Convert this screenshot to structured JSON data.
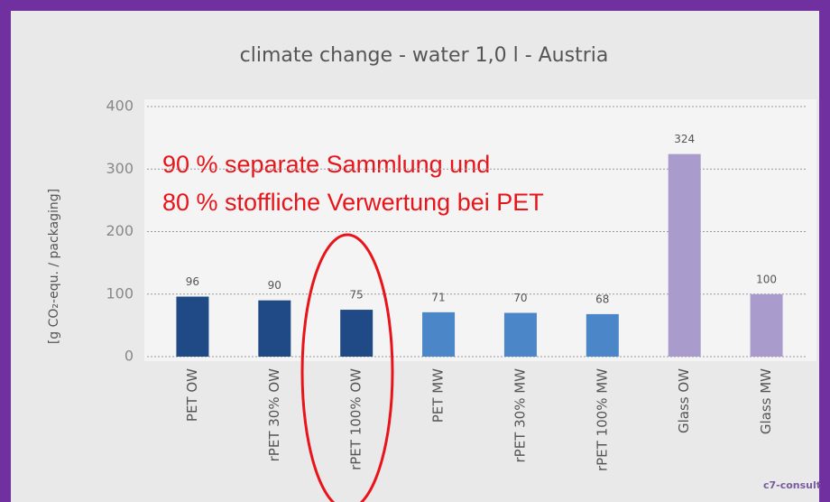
{
  "chart_data": {
    "type": "bar",
    "title": "climate change - water 1,0 l - Austria",
    "y_label": "[g CO₂-equ. / packaging]",
    "categories": [
      "PET OW",
      "rPET 30% OW",
      "rPET 100% OW",
      "PET MW",
      "rPET 30% MW",
      "rPET 100% MW",
      "Glass OW",
      "Glass MW"
    ],
    "values": [
      96,
      90,
      75,
      71,
      70,
      68,
      324,
      100
    ],
    "colors": [
      "#1f4a85",
      "#1f4a85",
      "#1f4a85",
      "#4a86c8",
      "#4a86c8",
      "#4a86c8",
      "#a99ccd",
      "#a99ccd"
    ],
    "ylim": [
      0,
      400
    ],
    "yticks": [
      0,
      100,
      200,
      300,
      400
    ],
    "grid": true,
    "annotations": [
      "90 % separate Sammlung und",
      "80 % stoffliche Verwertung bei PET"
    ],
    "logo": "c7-consult"
  }
}
